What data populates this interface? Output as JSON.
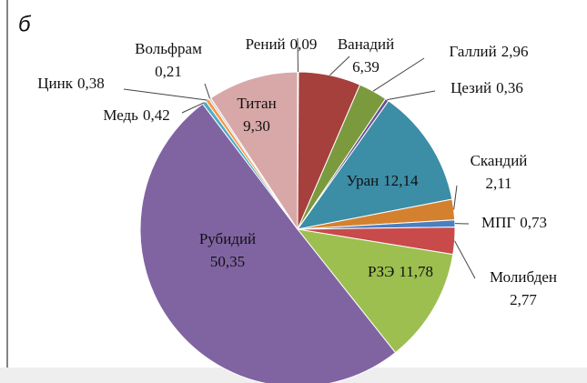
{
  "chart_data": {
    "type": "pie",
    "panel_label": "б",
    "categories": [
      "Рений",
      "Ванадий",
      "Галлий",
      "Цезий",
      "Уран",
      "Скандий",
      "МПГ",
      "Молибден",
      "РЗЭ",
      "Рубидий",
      "Медь",
      "Цинк",
      "Вольфрам",
      "Титан"
    ],
    "values": [
      0.09,
      6.39,
      2.96,
      0.36,
      12.14,
      2.11,
      0.73,
      2.77,
      11.78,
      50.35,
      0.42,
      0.38,
      0.21,
      9.3
    ],
    "value_labels": [
      "0,09",
      "6,39",
      "2,96",
      "0,36",
      "12,14",
      "2,11",
      "0,73",
      "2,77",
      "11,78",
      "50,35",
      "0,42",
      "0,38",
      "0,21",
      "9,30"
    ],
    "colors": [
      "#e8c21c",
      "#a5403d",
      "#7b9a3e",
      "#6a4f8f",
      "#3c8da6",
      "#d4812f",
      "#4a7fc0",
      "#c84a4a",
      "#9cbf50",
      "#8064a2",
      "#4bacc6",
      "#f79646",
      "#c9c9c9",
      "#d8a8a8"
    ]
  }
}
